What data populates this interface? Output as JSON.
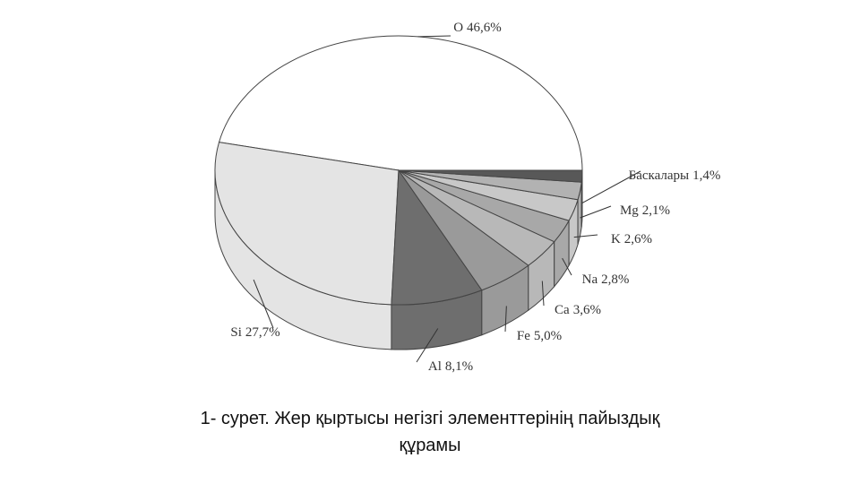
{
  "chart_data": {
    "type": "pie",
    "title": "1- сурет. Жер қыртысы негізгі элементтерінің пайыздық құрамы",
    "categories": [
      "O",
      "Si",
      "Al",
      "Fe",
      "Ca",
      "Na",
      "K",
      "Mg",
      "Баскалары"
    ],
    "values": [
      46.6,
      27.7,
      8.1,
      5.0,
      3.6,
      2.8,
      2.6,
      2.1,
      1.4
    ],
    "value_labels": [
      "46,6%",
      "27,7%",
      "8,1%",
      "5,0%",
      "3,6%",
      "2,8%",
      "2,6%",
      "2,1%",
      "1,4%"
    ],
    "colors": [
      "#ffffff",
      "#e4e4e4",
      "#6e6e6e",
      "#9a9a9a",
      "#b8b8b8",
      "#a8a8a8",
      "#c8c8c8",
      "#b2b2b2",
      "#585858"
    ]
  }
}
